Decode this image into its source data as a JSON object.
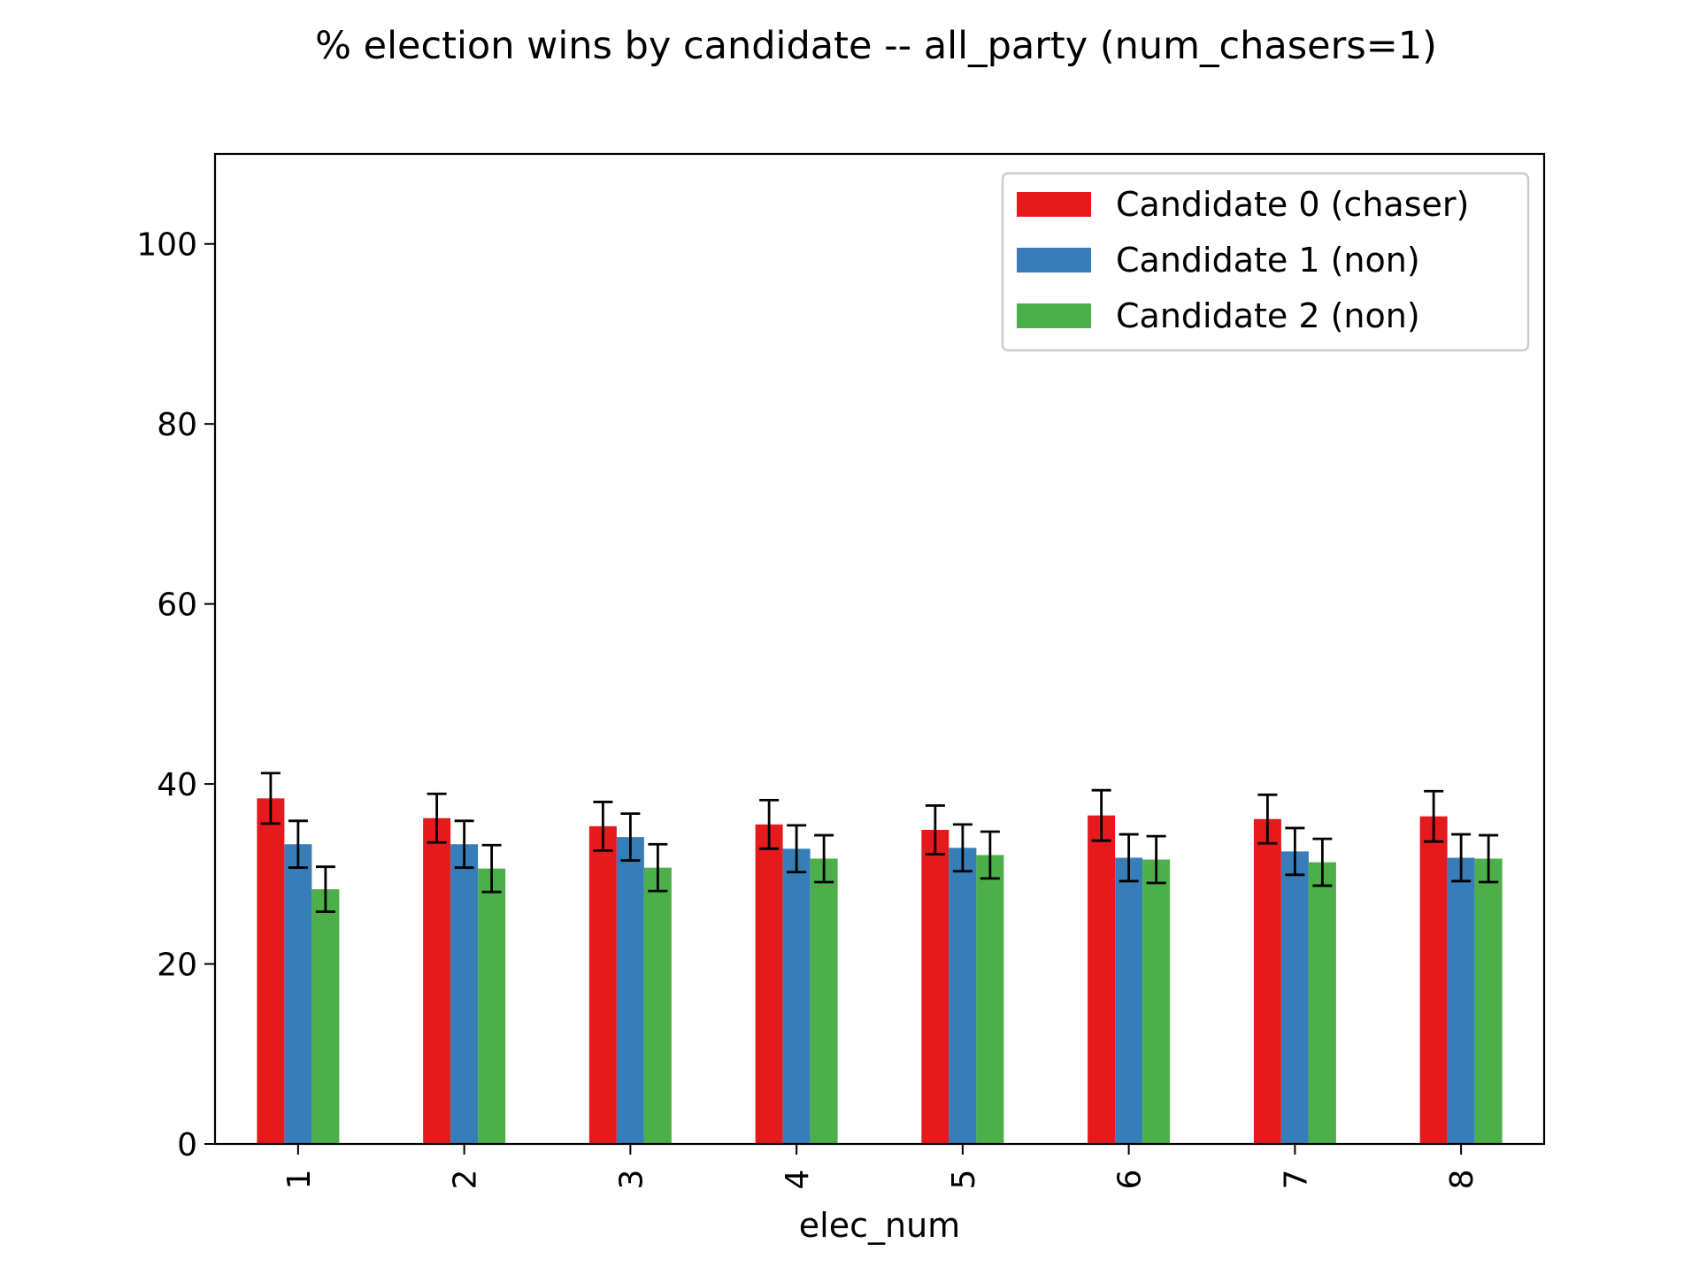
{
  "chart_data": {
    "type": "bar",
    "title": "% election wins by candidate -- all_party (num_chasers=1)",
    "xlabel": "elec_num",
    "ylabel": "",
    "categories": [
      "1",
      "2",
      "3",
      "4",
      "5",
      "6",
      "7",
      "8"
    ],
    "ylim": [
      0,
      110
    ],
    "yticks": [
      0,
      20,
      40,
      60,
      80,
      100
    ],
    "legend_position": "top-right",
    "grid": false,
    "series": [
      {
        "name": "Candidate 0 (chaser)",
        "color": "#e41a1c",
        "values": [
          38.4,
          36.2,
          35.3,
          35.5,
          34.9,
          36.5,
          36.1,
          36.4
        ],
        "error": [
          2.8,
          2.7,
          2.7,
          2.7,
          2.7,
          2.8,
          2.7,
          2.8
        ]
      },
      {
        "name": "Candidate 1 (non)",
        "color": "#377eb8",
        "values": [
          33.3,
          33.3,
          34.1,
          32.8,
          32.9,
          31.8,
          32.5,
          31.8
        ],
        "error": [
          2.6,
          2.6,
          2.6,
          2.6,
          2.6,
          2.6,
          2.6,
          2.6
        ]
      },
      {
        "name": "Candidate 2 (non)",
        "color": "#4daf4a",
        "values": [
          28.3,
          30.6,
          30.7,
          31.7,
          32.1,
          31.6,
          31.3,
          31.7
        ],
        "error": [
          2.5,
          2.6,
          2.6,
          2.6,
          2.6,
          2.6,
          2.6,
          2.6
        ]
      }
    ]
  }
}
